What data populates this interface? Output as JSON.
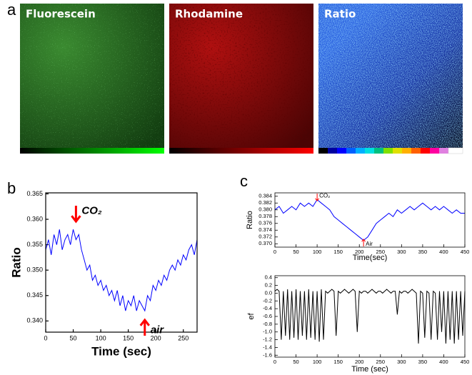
{
  "panels": {
    "a": "a",
    "b": "b",
    "c": "c"
  },
  "images": [
    "Fluorescein",
    "Rhodamine",
    "Ratio"
  ],
  "chart_data": [
    {
      "type": "line",
      "xlabel": "Time (sec)",
      "ylabel": "Ratio",
      "color": "#0000ff",
      "x": [
        0,
        5,
        10,
        15,
        20,
        25,
        30,
        35,
        40,
        45,
        50,
        55,
        60,
        65,
        70,
        75,
        80,
        85,
        90,
        95,
        100,
        105,
        110,
        115,
        120,
        125,
        130,
        135,
        140,
        145,
        150,
        155,
        160,
        165,
        170,
        175,
        180,
        185,
        190,
        195,
        200,
        205,
        210,
        215,
        220,
        225,
        230,
        235,
        240,
        245,
        250,
        255,
        260,
        265,
        270,
        275
      ],
      "values": [
        0.354,
        0.356,
        0.353,
        0.357,
        0.355,
        0.358,
        0.354,
        0.356,
        0.357,
        0.355,
        0.358,
        0.356,
        0.357,
        0.354,
        0.352,
        0.35,
        0.351,
        0.348,
        0.349,
        0.347,
        0.348,
        0.346,
        0.347,
        0.345,
        0.346,
        0.344,
        0.346,
        0.343,
        0.345,
        0.342,
        0.344,
        0.343,
        0.345,
        0.342,
        0.344,
        0.343,
        0.342,
        0.345,
        0.344,
        0.347,
        0.346,
        0.348,
        0.347,
        0.349,
        0.348,
        0.35,
        0.351,
        0.35,
        0.352,
        0.351,
        0.353,
        0.352,
        0.354,
        0.355,
        0.353,
        0.356
      ],
      "xlim": [
        0,
        275
      ],
      "xticks": [
        0,
        50,
        100,
        150,
        200,
        250
      ],
      "ylim": [
        0.3378,
        0.3652
      ],
      "yticks": [
        {
          "value": 0.34,
          "label": "0.340"
        },
        0.345,
        {
          "value": 0.35,
          "label": "0.350"
        },
        0.355,
        {
          "value": 0.36,
          "label": "0.360"
        },
        0.365
      ],
      "annotations": [
        {
          "text": "CO₂",
          "x": 55,
          "arrow": "down",
          "color": "#ff0000"
        },
        {
          "text": "air",
          "x": 180,
          "arrow": "up",
          "color": "#ff0000"
        }
      ]
    },
    {
      "type": "line",
      "xlabel": "Time(sec)",
      "ylabel": "Ratio",
      "color": "#0000ff",
      "x": [
        0,
        10,
        20,
        30,
        40,
        50,
        60,
        70,
        80,
        90,
        100,
        110,
        120,
        130,
        140,
        150,
        160,
        170,
        180,
        190,
        200,
        210,
        220,
        230,
        240,
        250,
        260,
        270,
        280,
        290,
        300,
        310,
        320,
        330,
        340,
        350,
        360,
        370,
        380,
        390,
        400,
        410,
        420,
        430,
        440,
        450
      ],
      "values": [
        0.38,
        0.381,
        0.379,
        0.38,
        0.381,
        0.38,
        0.382,
        0.381,
        0.382,
        0.381,
        0.383,
        0.382,
        0.381,
        0.38,
        0.378,
        0.377,
        0.376,
        0.375,
        0.374,
        0.373,
        0.372,
        0.371,
        0.372,
        0.374,
        0.376,
        0.377,
        0.378,
        0.379,
        0.378,
        0.38,
        0.379,
        0.38,
        0.381,
        0.38,
        0.381,
        0.382,
        0.381,
        0.38,
        0.381,
        0.38,
        0.381,
        0.38,
        0.379,
        0.38,
        0.379,
        0.379
      ],
      "xlim": [
        0,
        450
      ],
      "xticks": [
        0,
        50,
        100,
        150,
        200,
        250,
        300,
        350,
        400,
        450
      ],
      "ylim": [
        0.369,
        0.385
      ],
      "yticks": [
        {
          "value": 0.37,
          "label": "0.370"
        },
        0.372,
        0.374,
        0.376,
        0.378,
        {
          "value": 0.38,
          "label": "0.380"
        },
        0.382,
        0.384
      ],
      "annotations": [
        {
          "text": "CO₂",
          "x": 100,
          "arrow": "down",
          "color": "#ff0000"
        },
        {
          "text": "Air",
          "x": 210,
          "arrow": "up",
          "color": "#ff0000"
        }
      ]
    },
    {
      "type": "line",
      "xlabel": "Time (sec)",
      "ylabel": "ef",
      "color": "#000000",
      "x": [
        0,
        5,
        10,
        15,
        20,
        25,
        30,
        35,
        40,
        45,
        50,
        55,
        60,
        65,
        70,
        75,
        80,
        85,
        90,
        95,
        100,
        105,
        110,
        115,
        120,
        125,
        130,
        135,
        140,
        145,
        150,
        155,
        160,
        165,
        170,
        175,
        180,
        185,
        190,
        195,
        200,
        205,
        210,
        215,
        220,
        225,
        230,
        235,
        240,
        245,
        250,
        255,
        260,
        265,
        270,
        275,
        280,
        285,
        290,
        295,
        300,
        305,
        310,
        315,
        320,
        325,
        330,
        335,
        340,
        345,
        350,
        355,
        360,
        365,
        370,
        375,
        380,
        385,
        390,
        395,
        400,
        405,
        410,
        415,
        420,
        425,
        430,
        435,
        440,
        445,
        450
      ],
      "values": [
        0.05,
        0.1,
        0.05,
        -1.2,
        0.05,
        -1.1,
        0.1,
        -1.2,
        0.05,
        -1.15,
        0.1,
        -1.2,
        0.05,
        -1.1,
        0.05,
        -1.2,
        0.1,
        -1.15,
        0.05,
        -1.2,
        0.05,
        -1.25,
        0.1,
        -1.2,
        0.05,
        0.0,
        0.05,
        0.1,
        0.05,
        -1.1,
        0.05,
        0.0,
        0.05,
        0.1,
        0.05,
        0.0,
        0.05,
        0.1,
        0.05,
        -1.0,
        0.05,
        0.0,
        0.05,
        0.05,
        0.0,
        0.05,
        0.1,
        0.05,
        0.0,
        0.05,
        0.05,
        0.0,
        0.05,
        0.1,
        0.05,
        0.0,
        0.05,
        0.05,
        -0.55,
        0.05,
        0.0,
        0.05,
        0.05,
        0.0,
        0.05,
        0.1,
        0.05,
        0.0,
        -1.3,
        0.05,
        0.0,
        -1.15,
        0.05,
        0.0,
        -1.2,
        0.05,
        0.0,
        -1.2,
        0.05,
        -1.0,
        0.05,
        -1.3,
        0.05,
        -1.2,
        0.05,
        -1.3,
        0.05,
        -1.2,
        0.05,
        -1.1,
        0.05
      ],
      "xlim": [
        0,
        450
      ],
      "xticks": [
        0,
        50,
        100,
        150,
        200,
        250,
        300,
        350,
        400,
        450
      ],
      "ylim": [
        -1.65,
        0.45
      ],
      "yticks": [
        0.4,
        0.2,
        {
          "value": 0,
          "label": "0.0"
        },
        -0.2,
        -0.4,
        -0.6,
        -0.8,
        {
          "value": -1,
          "label": "-1.0"
        },
        -1.2,
        -1.4,
        -1.6
      ]
    }
  ]
}
